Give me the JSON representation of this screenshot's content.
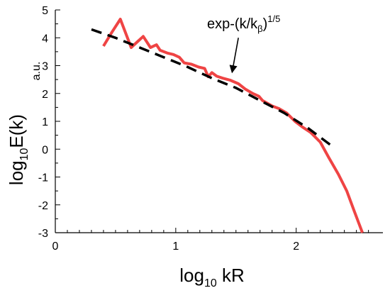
{
  "chart_data": {
    "type": "line",
    "xlabel": {
      "base": "log",
      "sub": "10",
      "rest": " kR"
    },
    "ylabel": {
      "base": "log",
      "sub": "10",
      "rest": "E(k)"
    },
    "ylabel_unit": "a.u.",
    "xlim": [
      0,
      2.72
    ],
    "ylim": [
      -3,
      5
    ],
    "x_ticks": [
      0,
      1,
      2
    ],
    "x_tick_labels": [
      "0",
      "1",
      "2"
    ],
    "y_ticks": [
      -3,
      -2,
      -1,
      0,
      1,
      2,
      3,
      4,
      5
    ],
    "y_tick_labels": [
      "-3",
      "-2",
      "-1",
      "0",
      "1",
      "2",
      "3",
      "4",
      "5"
    ],
    "grid": false,
    "series": [
      {
        "style": "solid",
        "color": "#ef4444",
        "x": [
          0.4,
          0.47,
          0.54,
          0.63,
          0.68,
          0.73,
          0.79,
          0.84,
          0.87,
          0.93,
          0.98,
          1.03,
          1.07,
          1.13,
          1.19,
          1.24,
          1.27,
          1.3,
          1.34,
          1.39,
          1.45,
          1.52,
          1.58,
          1.64,
          1.69,
          1.72,
          1.76,
          1.8,
          1.86,
          1.92,
          1.99,
          2.05,
          2.12,
          2.2,
          2.27,
          2.35,
          2.42,
          2.48,
          2.55
        ],
        "y": [
          3.7,
          4.2,
          4.67,
          3.65,
          3.85,
          4.05,
          3.65,
          3.75,
          3.55,
          3.45,
          3.4,
          3.3,
          3.1,
          3.05,
          2.95,
          2.9,
          2.6,
          2.75,
          2.62,
          2.55,
          2.48,
          2.35,
          2.15,
          2.0,
          1.9,
          1.75,
          1.65,
          1.55,
          1.45,
          1.3,
          1.0,
          0.8,
          0.6,
          0.25,
          -0.3,
          -0.9,
          -1.5,
          -2.2,
          -3.0
        ]
      },
      {
        "style": "dashed",
        "color": "#000000",
        "x": [
          0.3,
          0.5,
          0.7,
          0.9,
          1.1,
          1.3,
          1.5,
          1.7,
          1.9,
          2.1,
          2.3
        ],
        "y": [
          4.3,
          4.0,
          3.65,
          3.3,
          2.95,
          2.55,
          2.2,
          1.75,
          1.3,
          0.75,
          0.1
        ]
      }
    ],
    "annotation": {
      "text_base": "exp-(k/k",
      "text_sub": "β",
      "text_close": ")",
      "text_sup": "1/5",
      "arrow_to": {
        "x": 1.45,
        "y": 2.55
      },
      "arrow_from": {
        "x": 1.52,
        "y": 4.0
      }
    }
  }
}
